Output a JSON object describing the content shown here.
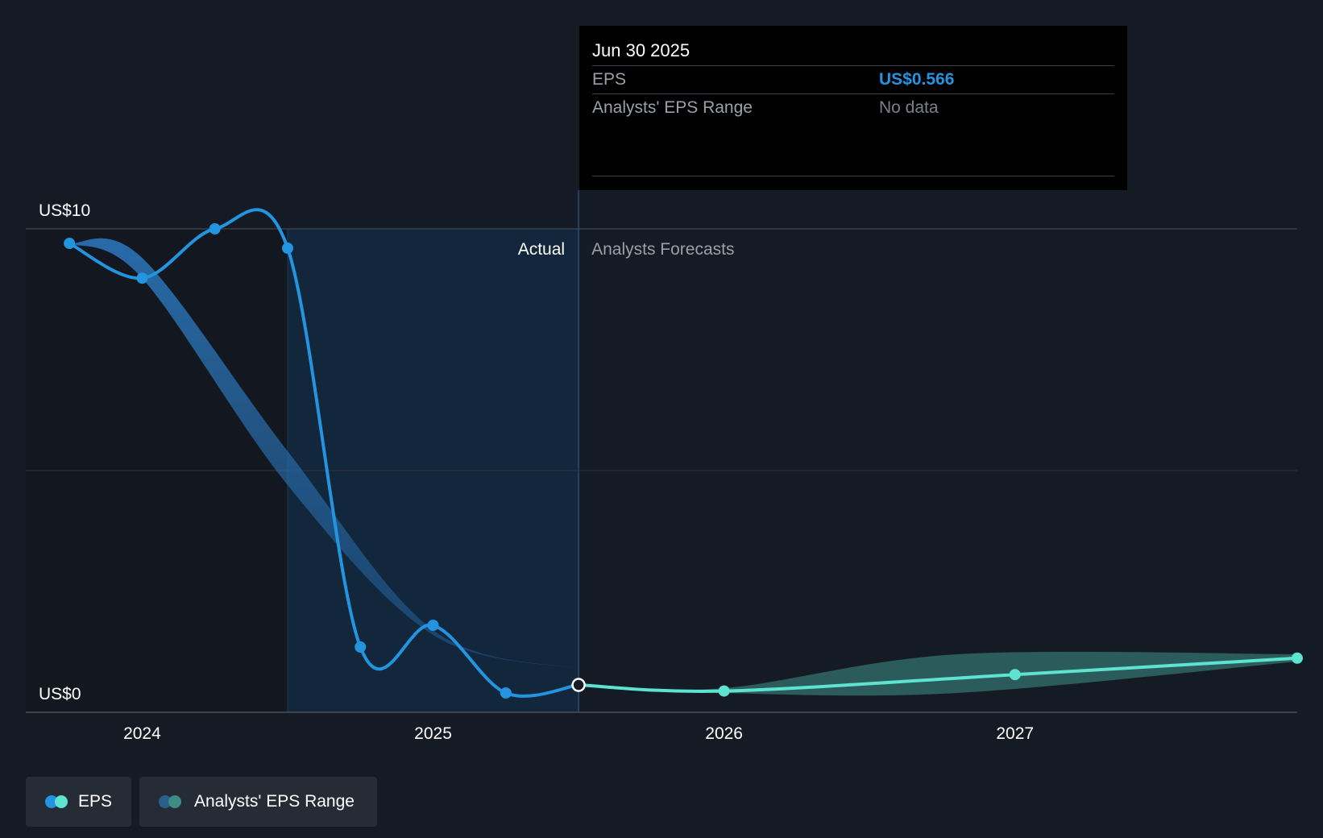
{
  "tooltip": {
    "date": "Jun 30 2025",
    "eps_label": "EPS",
    "eps_value": "US$0.566",
    "range_label": "Analysts' EPS Range",
    "range_value": "No data"
  },
  "regions": {
    "actual_label": "Actual",
    "forecast_label": "Analysts Forecasts"
  },
  "legend": [
    {
      "label": "EPS",
      "colors": [
        "#2394df",
        "#5de3cf"
      ]
    },
    {
      "label": "Analysts' EPS Range",
      "colors": [
        "#2a5f8a",
        "#3e8c86"
      ]
    }
  ],
  "colors": {
    "actual": "#2394df",
    "forecast": "#5de3cf",
    "background": "#151b24"
  },
  "chart_data": {
    "type": "line",
    "title": "",
    "xlabel": "",
    "ylabel": "",
    "y_axis_labels": [
      {
        "value": 10,
        "label": "US$10"
      },
      {
        "value": 0,
        "label": "US$0"
      }
    ],
    "ylim": [
      0,
      10
    ],
    "xlim": [
      2023.6,
      2027.97
    ],
    "x_ticks": [
      {
        "value": 2024.0,
        "label": "2024"
      },
      {
        "value": 2025.0,
        "label": "2025"
      },
      {
        "value": 2026.0,
        "label": "2026"
      },
      {
        "value": 2027.0,
        "label": "2027"
      }
    ],
    "forecast_start": 2025.5,
    "highlight_period": [
      2024.5,
      2025.5
    ],
    "series": [
      {
        "name": "EPS (Actual)",
        "x": [
          2023.75,
          2024.0,
          2024.25,
          2024.5,
          2024.75,
          2025.0,
          2025.25,
          2025.5
        ],
        "values": [
          9.7,
          8.98,
          10.0,
          9.6,
          1.35,
          1.8,
          0.4,
          0.566
        ]
      },
      {
        "name": "EPS (Analysts Forecasts)",
        "x": [
          2025.5,
          2026.0,
          2027.0,
          2027.97
        ],
        "values": [
          0.566,
          0.44,
          0.78,
          1.12
        ]
      }
    ],
    "range_past": {
      "x": [
        2023.75,
        2024.0,
        2024.5,
        2025.0,
        2025.5
      ],
      "upper": [
        9.7,
        9.4,
        5.4,
        1.7,
        0.9
      ],
      "lower": [
        9.7,
        8.98,
        4.7,
        1.6,
        0.9
      ]
    },
    "range_forecast": {
      "x": [
        2025.5,
        2026.0,
        2026.8,
        2027.97
      ],
      "upper": [
        0.566,
        0.5,
        1.2,
        1.2
      ],
      "lower": [
        0.566,
        0.4,
        0.4,
        1.05
      ]
    }
  }
}
